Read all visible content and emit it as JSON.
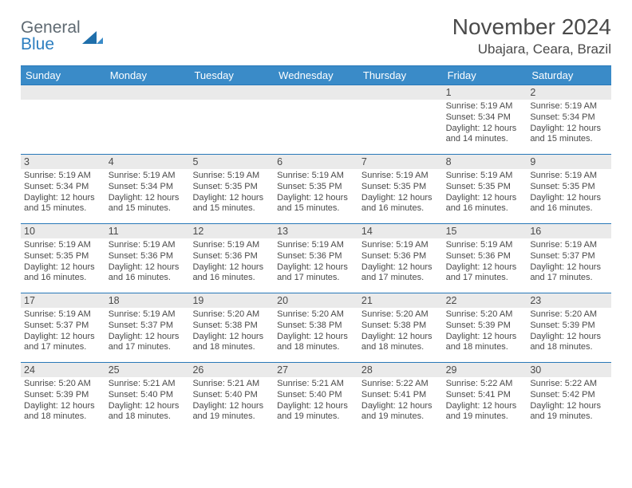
{
  "logo": {
    "word1": "General",
    "word2": "Blue"
  },
  "title": "November 2024",
  "subtitle": "Ubajara, Ceara, Brazil",
  "colors": {
    "headerBar": "#3a8bc8",
    "weekBorder": "#2878b8",
    "dayNumBg": "#eaeaea",
    "text": "#4a4a4a",
    "logoGray": "#5f6a72",
    "logoBlue": "#2d7fc0"
  },
  "dayHeaders": [
    "Sunday",
    "Monday",
    "Tuesday",
    "Wednesday",
    "Thursday",
    "Friday",
    "Saturday"
  ],
  "weeks": [
    [
      {
        "n": "",
        "info": null
      },
      {
        "n": "",
        "info": null
      },
      {
        "n": "",
        "info": null
      },
      {
        "n": "",
        "info": null
      },
      {
        "n": "",
        "info": null
      },
      {
        "n": "1",
        "info": {
          "sunrise": "5:19 AM",
          "sunset": "5:34 PM",
          "daylight": "12 hours and 14 minutes."
        }
      },
      {
        "n": "2",
        "info": {
          "sunrise": "5:19 AM",
          "sunset": "5:34 PM",
          "daylight": "12 hours and 15 minutes."
        }
      }
    ],
    [
      {
        "n": "3",
        "info": {
          "sunrise": "5:19 AM",
          "sunset": "5:34 PM",
          "daylight": "12 hours and 15 minutes."
        }
      },
      {
        "n": "4",
        "info": {
          "sunrise": "5:19 AM",
          "sunset": "5:34 PM",
          "daylight": "12 hours and 15 minutes."
        }
      },
      {
        "n": "5",
        "info": {
          "sunrise": "5:19 AM",
          "sunset": "5:35 PM",
          "daylight": "12 hours and 15 minutes."
        }
      },
      {
        "n": "6",
        "info": {
          "sunrise": "5:19 AM",
          "sunset": "5:35 PM",
          "daylight": "12 hours and 15 minutes."
        }
      },
      {
        "n": "7",
        "info": {
          "sunrise": "5:19 AM",
          "sunset": "5:35 PM",
          "daylight": "12 hours and 16 minutes."
        }
      },
      {
        "n": "8",
        "info": {
          "sunrise": "5:19 AM",
          "sunset": "5:35 PM",
          "daylight": "12 hours and 16 minutes."
        }
      },
      {
        "n": "9",
        "info": {
          "sunrise": "5:19 AM",
          "sunset": "5:35 PM",
          "daylight": "12 hours and 16 minutes."
        }
      }
    ],
    [
      {
        "n": "10",
        "info": {
          "sunrise": "5:19 AM",
          "sunset": "5:35 PM",
          "daylight": "12 hours and 16 minutes."
        }
      },
      {
        "n": "11",
        "info": {
          "sunrise": "5:19 AM",
          "sunset": "5:36 PM",
          "daylight": "12 hours and 16 minutes."
        }
      },
      {
        "n": "12",
        "info": {
          "sunrise": "5:19 AM",
          "sunset": "5:36 PM",
          "daylight": "12 hours and 16 minutes."
        }
      },
      {
        "n": "13",
        "info": {
          "sunrise": "5:19 AM",
          "sunset": "5:36 PM",
          "daylight": "12 hours and 17 minutes."
        }
      },
      {
        "n": "14",
        "info": {
          "sunrise": "5:19 AM",
          "sunset": "5:36 PM",
          "daylight": "12 hours and 17 minutes."
        }
      },
      {
        "n": "15",
        "info": {
          "sunrise": "5:19 AM",
          "sunset": "5:36 PM",
          "daylight": "12 hours and 17 minutes."
        }
      },
      {
        "n": "16",
        "info": {
          "sunrise": "5:19 AM",
          "sunset": "5:37 PM",
          "daylight": "12 hours and 17 minutes."
        }
      }
    ],
    [
      {
        "n": "17",
        "info": {
          "sunrise": "5:19 AM",
          "sunset": "5:37 PM",
          "daylight": "12 hours and 17 minutes."
        }
      },
      {
        "n": "18",
        "info": {
          "sunrise": "5:19 AM",
          "sunset": "5:37 PM",
          "daylight": "12 hours and 17 minutes."
        }
      },
      {
        "n": "19",
        "info": {
          "sunrise": "5:20 AM",
          "sunset": "5:38 PM",
          "daylight": "12 hours and 18 minutes."
        }
      },
      {
        "n": "20",
        "info": {
          "sunrise": "5:20 AM",
          "sunset": "5:38 PM",
          "daylight": "12 hours and 18 minutes."
        }
      },
      {
        "n": "21",
        "info": {
          "sunrise": "5:20 AM",
          "sunset": "5:38 PM",
          "daylight": "12 hours and 18 minutes."
        }
      },
      {
        "n": "22",
        "info": {
          "sunrise": "5:20 AM",
          "sunset": "5:39 PM",
          "daylight": "12 hours and 18 minutes."
        }
      },
      {
        "n": "23",
        "info": {
          "sunrise": "5:20 AM",
          "sunset": "5:39 PM",
          "daylight": "12 hours and 18 minutes."
        }
      }
    ],
    [
      {
        "n": "24",
        "info": {
          "sunrise": "5:20 AM",
          "sunset": "5:39 PM",
          "daylight": "12 hours and 18 minutes."
        }
      },
      {
        "n": "25",
        "info": {
          "sunrise": "5:21 AM",
          "sunset": "5:40 PM",
          "daylight": "12 hours and 18 minutes."
        }
      },
      {
        "n": "26",
        "info": {
          "sunrise": "5:21 AM",
          "sunset": "5:40 PM",
          "daylight": "12 hours and 19 minutes."
        }
      },
      {
        "n": "27",
        "info": {
          "sunrise": "5:21 AM",
          "sunset": "5:40 PM",
          "daylight": "12 hours and 19 minutes."
        }
      },
      {
        "n": "28",
        "info": {
          "sunrise": "5:22 AM",
          "sunset": "5:41 PM",
          "daylight": "12 hours and 19 minutes."
        }
      },
      {
        "n": "29",
        "info": {
          "sunrise": "5:22 AM",
          "sunset": "5:41 PM",
          "daylight": "12 hours and 19 minutes."
        }
      },
      {
        "n": "30",
        "info": {
          "sunrise": "5:22 AM",
          "sunset": "5:42 PM",
          "daylight": "12 hours and 19 minutes."
        }
      }
    ]
  ],
  "labels": {
    "sunrise": "Sunrise:",
    "sunset": "Sunset:",
    "daylight": "Daylight:"
  }
}
